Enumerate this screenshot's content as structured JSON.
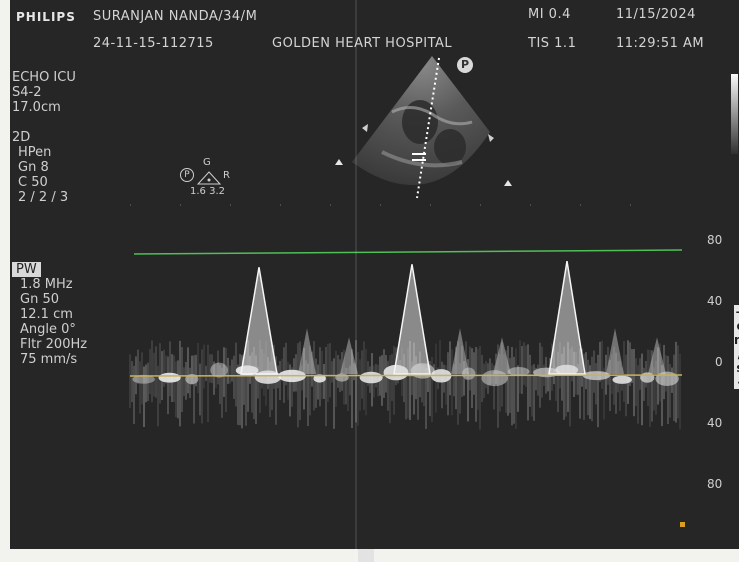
{
  "header": {
    "brand": "PHILIPS",
    "patient": "SURANJAN NANDA/34/M",
    "study_id": "24-11-15-112715",
    "hospital": "GOLDEN HEART HOSPITAL",
    "mi": "MI 0.4",
    "tis": "TIS 1.1",
    "date": "11/15/2024",
    "time": "11:29:51 AM"
  },
  "left_panel": {
    "lines": [
      "ECHO ICU",
      "S4-2",
      "17.0cm",
      "",
      "2D",
      "HPen",
      "Gn 8",
      "C 50",
      "2 / 2 / 3"
    ]
  },
  "orientation": {
    "p_badge": "P",
    "g_label": "G",
    "r_label": "R",
    "values": "1.6  3.2"
  },
  "doppler_panel": {
    "lines": [
      "PW",
      "1.8 MHz",
      "Gn 50",
      "12.1 cm",
      "Angle 0°",
      "Fltr 200Hz",
      "75 mm/s"
    ]
  },
  "scale": {
    "ticks": [
      "80",
      "40",
      "0",
      "40",
      "80"
    ],
    "unit_chars": [
      "+",
      "c",
      "m",
      "/",
      "s",
      "-"
    ]
  },
  "colors": {
    "screen_bg": "#262626",
    "baseline": "#c8b35a",
    "velocity_line": "#4fbf57",
    "text": "#d4d4d4"
  },
  "chart_data": {
    "type": "line",
    "ylabel": "cm/s",
    "ylim": [
      -80,
      80
    ],
    "yticks": [
      80,
      40,
      0,
      -40,
      -80
    ],
    "velocity_marker": 80,
    "peaks": [
      {
        "label": "",
        "velocity": 70
      },
      {
        "label": "",
        "velocity": 72
      },
      {
        "label": "",
        "velocity": 74
      }
    ]
  }
}
